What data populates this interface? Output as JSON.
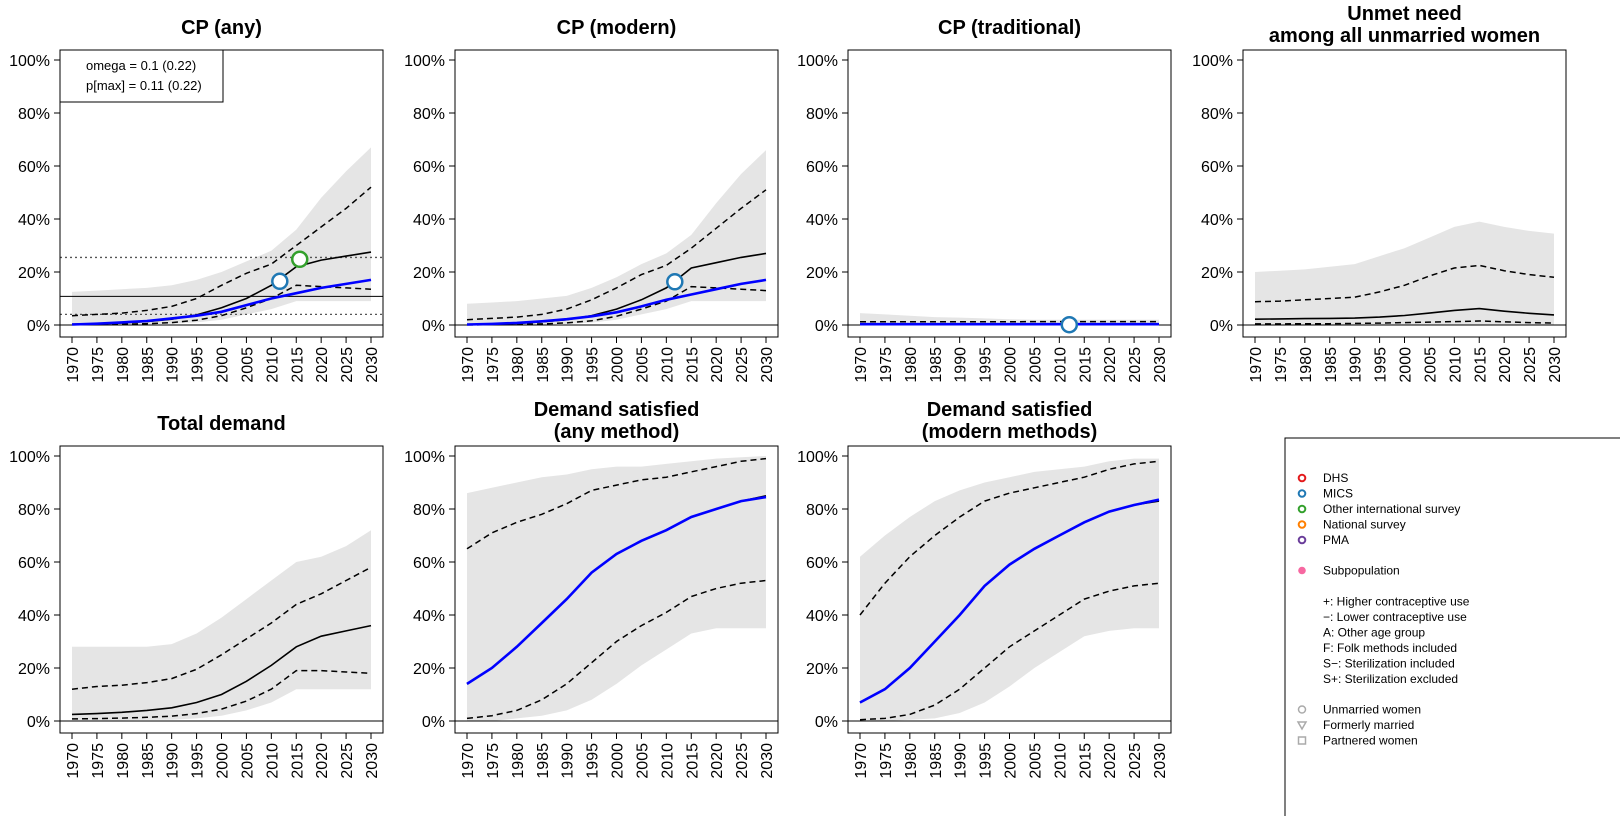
{
  "chart_data": [
    {
      "type": "line",
      "title": [
        "CP (any)"
      ],
      "xlabel": "",
      "ylabel": "",
      "xlim": [
        1970,
        2030
      ],
      "ylim": [
        0,
        1
      ],
      "x": [
        1970,
        1975,
        1980,
        1985,
        1990,
        1995,
        2000,
        2005,
        2010,
        2015,
        2020,
        2025,
        2030
      ],
      "median": [
        0.003,
        0.005,
        0.008,
        0.013,
        0.022,
        0.038,
        0.065,
        0.1,
        0.15,
        0.22,
        0.245,
        0.26,
        0.275
      ],
      "lower": [
        0.001,
        0.002,
        0.003,
        0.005,
        0.009,
        0.018,
        0.035,
        0.065,
        0.1,
        0.15,
        0.145,
        0.14,
        0.135
      ],
      "upper": [
        0.035,
        0.04,
        0.045,
        0.055,
        0.07,
        0.1,
        0.15,
        0.195,
        0.23,
        0.3,
        0.37,
        0.44,
        0.52
      ],
      "pi_lo": [
        0.002,
        0.002,
        0.002,
        0.003,
        0.005,
        0.01,
        0.02,
        0.04,
        0.06,
        0.09,
        0.09,
        0.09,
        0.09
      ],
      "pi_hi": [
        0.125,
        0.13,
        0.135,
        0.14,
        0.15,
        0.17,
        0.2,
        0.24,
        0.28,
        0.36,
        0.48,
        0.58,
        0.67
      ],
      "blue": [
        0.002,
        0.005,
        0.01,
        0.015,
        0.025,
        0.035,
        0.05,
        0.075,
        0.1,
        0.12,
        0.14,
        0.155,
        0.17
      ],
      "points": [
        {
          "x": 2011.7,
          "y": 0.165,
          "source": "MICS"
        },
        {
          "x": 2015.7,
          "y": 0.248,
          "source": "Other international survey"
        }
      ],
      "hlines_dotted": [
        0.04,
        0.255
      ],
      "hline_solid": 0.108,
      "inset_text": [
        "omega = 0.1 (0.22)",
        "p[max] = 0.11 (0.22)"
      ]
    },
    {
      "type": "line",
      "title": [
        "CP (modern)"
      ],
      "xlabel": "",
      "ylabel": "",
      "xlim": [
        1970,
        2030
      ],
      "ylim": [
        0,
        1
      ],
      "x": [
        1970,
        1975,
        1980,
        1985,
        1990,
        1995,
        2000,
        2005,
        2010,
        2015,
        2020,
        2025,
        2030
      ],
      "median": [
        0.002,
        0.003,
        0.006,
        0.012,
        0.02,
        0.035,
        0.06,
        0.095,
        0.14,
        0.215,
        0.235,
        0.255,
        0.27
      ],
      "lower": [
        0.0005,
        0.001,
        0.002,
        0.004,
        0.008,
        0.016,
        0.033,
        0.06,
        0.09,
        0.145,
        0.14,
        0.135,
        0.13
      ],
      "upper": [
        0.02,
        0.025,
        0.03,
        0.04,
        0.06,
        0.095,
        0.14,
        0.19,
        0.225,
        0.29,
        0.365,
        0.44,
        0.51
      ],
      "pi_lo": [
        0.001,
        0.001,
        0.001,
        0.002,
        0.004,
        0.009,
        0.02,
        0.04,
        0.06,
        0.09,
        0.09,
        0.09,
        0.09
      ],
      "pi_hi": [
        0.08,
        0.085,
        0.09,
        0.1,
        0.11,
        0.14,
        0.18,
        0.23,
        0.27,
        0.34,
        0.46,
        0.57,
        0.66
      ],
      "blue": [
        0.002,
        0.004,
        0.008,
        0.014,
        0.022,
        0.033,
        0.048,
        0.07,
        0.095,
        0.115,
        0.135,
        0.155,
        0.17
      ],
      "points": [
        {
          "x": 2011.7,
          "y": 0.163,
          "source": "MICS"
        }
      ]
    },
    {
      "type": "line",
      "title": [
        "CP (traditional)"
      ],
      "xlabel": "",
      "ylabel": "",
      "xlim": [
        1970,
        2030
      ],
      "ylim": [
        0,
        1
      ],
      "x": [
        1970,
        1975,
        1980,
        1985,
        1990,
        1995,
        2000,
        2005,
        2010,
        2015,
        2020,
        2025,
        2030
      ],
      "median": [
        0.003,
        0.003,
        0.003,
        0.003,
        0.003,
        0.003,
        0.003,
        0.003,
        0.003,
        0.003,
        0.003,
        0.003,
        0.003
      ],
      "lower": [
        0.001,
        0.001,
        0.001,
        0.001,
        0.001,
        0.001,
        0.001,
        0.001,
        0.001,
        0.001,
        0.001,
        0.001,
        0.001
      ],
      "upper": [
        0.012,
        0.012,
        0.012,
        0.012,
        0.012,
        0.012,
        0.012,
        0.013,
        0.013,
        0.013,
        0.013,
        0.013,
        0.013
      ],
      "pi_lo": [
        0.0,
        0.0,
        0.0,
        0.0,
        0.0,
        0.0,
        0.0,
        0.0,
        0.0,
        0.0,
        0.0,
        0.0,
        0.0
      ],
      "pi_hi": [
        0.045,
        0.04,
        0.035,
        0.03,
        0.028,
        0.025,
        0.022,
        0.02,
        0.02,
        0.02,
        0.02,
        0.02,
        0.02
      ],
      "blue": [
        0.003,
        0.003,
        0.003,
        0.003,
        0.003,
        0.003,
        0.003,
        0.003,
        0.003,
        0.003,
        0.003,
        0.003,
        0.003
      ],
      "points": [
        {
          "x": 2012,
          "y": 0.001,
          "source": "MICS"
        }
      ]
    },
    {
      "type": "line",
      "title": [
        "Unmet need",
        "among all unmarried women"
      ],
      "xlabel": "",
      "ylabel": "",
      "xlim": [
        1970,
        2030
      ],
      "ylim": [
        0,
        1
      ],
      "x": [
        1970,
        1975,
        1980,
        1985,
        1990,
        1995,
        2000,
        2005,
        2010,
        2015,
        2020,
        2025,
        2030
      ],
      "median": [
        0.022,
        0.023,
        0.024,
        0.025,
        0.026,
        0.03,
        0.036,
        0.045,
        0.055,
        0.062,
        0.052,
        0.044,
        0.038
      ],
      "lower": [
        0.004,
        0.004,
        0.005,
        0.005,
        0.006,
        0.007,
        0.009,
        0.011,
        0.013,
        0.015,
        0.012,
        0.009,
        0.007
      ],
      "upper": [
        0.088,
        0.09,
        0.095,
        0.1,
        0.105,
        0.125,
        0.15,
        0.185,
        0.215,
        0.225,
        0.205,
        0.19,
        0.18
      ],
      "pi_lo": [
        0.001,
        0.001,
        0.001,
        0.001,
        0.001,
        0.001,
        0.001,
        0.001,
        0.001,
        0.001,
        0.001,
        0.001,
        0.001
      ],
      "pi_hi": [
        0.2,
        0.205,
        0.21,
        0.22,
        0.23,
        0.26,
        0.29,
        0.33,
        0.37,
        0.39,
        0.37,
        0.355,
        0.345
      ],
      "points": []
    },
    {
      "type": "line",
      "title": [
        "Total demand"
      ],
      "xlabel": "",
      "ylabel": "",
      "xlim": [
        1970,
        2030
      ],
      "ylim": [
        0,
        1
      ],
      "x": [
        1970,
        1975,
        1980,
        1985,
        1990,
        1995,
        2000,
        2005,
        2010,
        2015,
        2020,
        2025,
        2030
      ],
      "median": [
        0.025,
        0.028,
        0.033,
        0.04,
        0.05,
        0.07,
        0.1,
        0.15,
        0.21,
        0.28,
        0.32,
        0.34,
        0.36
      ],
      "lower": [
        0.008,
        0.009,
        0.011,
        0.014,
        0.018,
        0.028,
        0.045,
        0.075,
        0.12,
        0.19,
        0.19,
        0.185,
        0.18
      ],
      "upper": [
        0.12,
        0.13,
        0.135,
        0.145,
        0.16,
        0.195,
        0.25,
        0.31,
        0.37,
        0.44,
        0.48,
        0.53,
        0.58
      ],
      "pi_lo": [
        0.003,
        0.003,
        0.003,
        0.004,
        0.005,
        0.01,
        0.02,
        0.04,
        0.07,
        0.12,
        0.12,
        0.12,
        0.12
      ],
      "pi_hi": [
        0.28,
        0.28,
        0.28,
        0.28,
        0.29,
        0.33,
        0.39,
        0.46,
        0.53,
        0.6,
        0.62,
        0.66,
        0.72
      ],
      "points": []
    },
    {
      "type": "line",
      "title": [
        "Demand satisfied",
        "(any method)"
      ],
      "xlabel": "",
      "ylabel": "",
      "xlim": [
        1970,
        2030
      ],
      "ylim": [
        0,
        1
      ],
      "x": [
        1970,
        1975,
        1980,
        1985,
        1990,
        1995,
        2000,
        2005,
        2010,
        2015,
        2020,
        2025,
        2030
      ],
      "median": [
        0.14,
        0.2,
        0.28,
        0.37,
        0.46,
        0.56,
        0.63,
        0.68,
        0.72,
        0.77,
        0.8,
        0.83,
        0.85
      ],
      "lower": [
        0.01,
        0.02,
        0.04,
        0.08,
        0.14,
        0.22,
        0.3,
        0.36,
        0.41,
        0.47,
        0.5,
        0.52,
        0.53
      ],
      "upper": [
        0.65,
        0.71,
        0.75,
        0.78,
        0.82,
        0.87,
        0.89,
        0.91,
        0.92,
        0.94,
        0.96,
        0.98,
        0.99
      ],
      "pi_lo": [
        0.0,
        0.0,
        0.01,
        0.02,
        0.04,
        0.08,
        0.14,
        0.21,
        0.27,
        0.33,
        0.35,
        0.35,
        0.35
      ],
      "pi_hi": [
        0.86,
        0.88,
        0.9,
        0.92,
        0.93,
        0.95,
        0.96,
        0.96,
        0.97,
        0.98,
        0.99,
        0.995,
        1.0
      ],
      "blue": [
        0.14,
        0.2,
        0.28,
        0.37,
        0.46,
        0.56,
        0.63,
        0.68,
        0.72,
        0.77,
        0.8,
        0.83,
        0.845
      ],
      "points": []
    },
    {
      "type": "line",
      "title": [
        "Demand satisfied",
        "(modern methods)"
      ],
      "xlabel": "",
      "ylabel": "",
      "xlim": [
        1970,
        2030
      ],
      "ylim": [
        0,
        1
      ],
      "x": [
        1970,
        1975,
        1980,
        1985,
        1990,
        1995,
        2000,
        2005,
        2010,
        2015,
        2020,
        2025,
        2030
      ],
      "median": [
        0.07,
        0.12,
        0.2,
        0.3,
        0.4,
        0.51,
        0.59,
        0.65,
        0.7,
        0.75,
        0.79,
        0.815,
        0.83
      ],
      "lower": [
        0.005,
        0.01,
        0.025,
        0.06,
        0.12,
        0.2,
        0.28,
        0.34,
        0.4,
        0.46,
        0.49,
        0.51,
        0.52
      ],
      "upper": [
        0.4,
        0.52,
        0.62,
        0.7,
        0.77,
        0.83,
        0.86,
        0.88,
        0.9,
        0.92,
        0.95,
        0.97,
        0.98
      ],
      "pi_lo": [
        0.0,
        0.0,
        0.005,
        0.01,
        0.03,
        0.07,
        0.13,
        0.2,
        0.26,
        0.32,
        0.34,
        0.35,
        0.35
      ],
      "pi_hi": [
        0.62,
        0.7,
        0.77,
        0.83,
        0.87,
        0.9,
        0.92,
        0.94,
        0.95,
        0.96,
        0.98,
        0.99,
        0.99
      ],
      "blue": [
        0.07,
        0.12,
        0.2,
        0.3,
        0.4,
        0.51,
        0.59,
        0.65,
        0.7,
        0.75,
        0.79,
        0.815,
        0.835
      ],
      "points": []
    }
  ],
  "axes": {
    "y_ticks": [
      "0%",
      "20%",
      "40%",
      "60%",
      "80%",
      "100%"
    ],
    "x_ticks": [
      "1970",
      "1975",
      "1980",
      "1985",
      "1990",
      "1995",
      "2000",
      "2005",
      "2010",
      "2015",
      "2020",
      "2025",
      "2030"
    ]
  },
  "legend": {
    "sources": [
      {
        "label": "DHS",
        "color": "#e31a1c"
      },
      {
        "label": "MICS",
        "color": "#1f78b4"
      },
      {
        "label": "Other international survey",
        "color": "#33a02c"
      },
      {
        "label": "National survey",
        "color": "#ff7f00"
      },
      {
        "label": "PMA",
        "color": "#6a3d9a"
      }
    ],
    "subpopulation": {
      "label": "Subpopulation",
      "color": "#f768a1"
    },
    "codes": [
      "+:  Higher contraceptive use",
      "−:  Lower contraceptive use",
      "A:  Other age group",
      "F:  Folk methods included",
      "S−: Sterilization included",
      "S+: Sterilization excluded"
    ],
    "groups": [
      {
        "label": "Unmarried women",
        "icon": "circle-icon"
      },
      {
        "label": "Formerly married",
        "icon": "triangle-down-icon"
      },
      {
        "label": "Partnered women",
        "icon": "square-icon"
      }
    ]
  },
  "colors": {
    "band": "#e5e5e5",
    "median": "#000000",
    "blue_line": "#0000ff",
    "reference": "#555555"
  }
}
